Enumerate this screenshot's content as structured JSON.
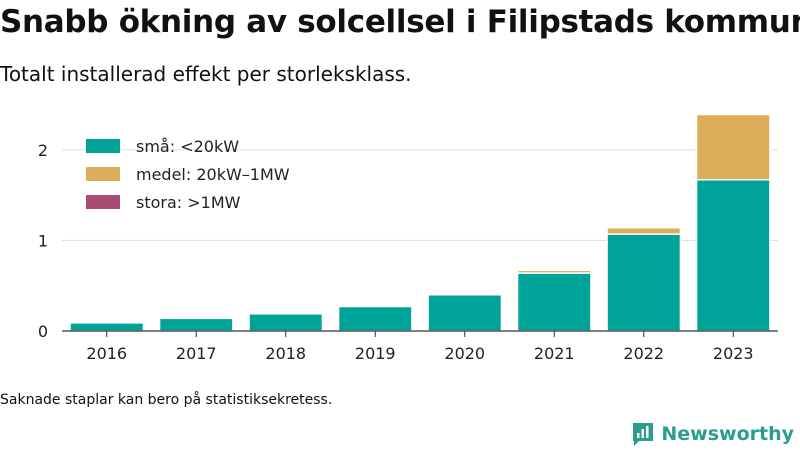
{
  "title": "Snabb ökning av solcellsel i Filipstads kommun",
  "subtitle": "Totalt installerad effekt per storleksklass.",
  "footnote": "Saknade staplar kan bero på statistiksekretess.",
  "brand": {
    "name": "Newsworthy",
    "icon": "newsworthy-logo-icon",
    "color": "#2a9d8f"
  },
  "chart_data": {
    "type": "bar",
    "stacked": true,
    "categories": [
      "2016",
      "2017",
      "2018",
      "2019",
      "2020",
      "2021",
      "2022",
      "2023"
    ],
    "series": [
      {
        "name": "små: <20kW",
        "color": "#00a398",
        "values": [
          0.09,
          0.14,
          0.19,
          0.27,
          0.4,
          0.64,
          1.07,
          1.67
        ]
      },
      {
        "name": "medel: 20kW–1MW",
        "color": "#dcae5a",
        "values": [
          0,
          0,
          0,
          0,
          0,
          0.03,
          0.07,
          0.72
        ]
      },
      {
        "name": "stora: >1MW",
        "color": "#a84a72",
        "values": [
          0,
          0,
          0,
          0,
          0,
          0,
          0,
          0
        ]
      }
    ],
    "yticks": [
      0,
      1,
      2
    ],
    "ylim": [
      0,
      2.55
    ],
    "xlabel": "",
    "ylabel": "",
    "grid": true,
    "legend": "top-left"
  }
}
